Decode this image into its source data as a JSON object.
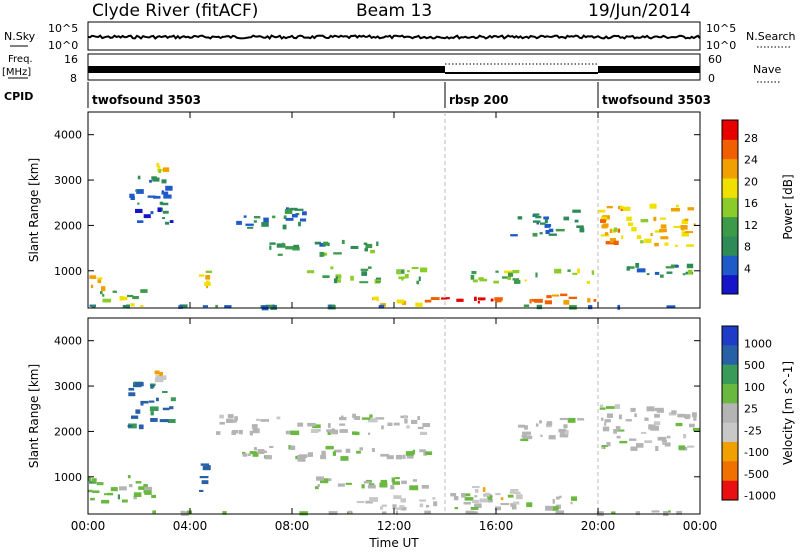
{
  "header": {
    "title": "Clyde River (fitACF)",
    "beam": "Beam 13",
    "date": "19/Jun/2014"
  },
  "strip_labels": {
    "nsky": "N.Sky",
    "nsky_ticks": [
      "10^5",
      "10^0"
    ],
    "nsearch": "N.Search",
    "freq": "Freq.",
    "freq_unit": "[MHz]",
    "freq_ticks": [
      "16",
      "8"
    ],
    "nave": "Nave",
    "nave_ticks": [
      "60",
      "0"
    ],
    "cpid": "CPID"
  },
  "cpid_segments": [
    {
      "label": "twofsound 3503",
      "start_hour": 0,
      "end_hour": 14.0
    },
    {
      "label": "rbsp 200",
      "start_hour": 14.0,
      "end_hour": 20.0
    },
    {
      "label": "twofsound 3503",
      "start_hour": 20.0,
      "end_hour": 24.0
    }
  ],
  "colors": {
    "power_scale": [
      "#1414c8",
      "#1e5ac8",
      "#2e8b57",
      "#3c9a4a",
      "#8ccc2a",
      "#f0e000",
      "#f0a000",
      "#f06000",
      "#e80000"
    ],
    "velocity_scale": [
      "#1e3cc8",
      "#2860a8",
      "#3a9a5a",
      "#6ab840",
      "#b4b4b4",
      "#c8c8c8",
      "#f0a000",
      "#f07000",
      "#e81010"
    ]
  },
  "chart_data": [
    {
      "type": "heatmap",
      "title": "",
      "xlabel": "",
      "ylabel": "Slant Range [km]",
      "xlim": [
        0,
        24
      ],
      "ylim": [
        180,
        4500
      ],
      "x_ticks": [
        "00:00",
        "04:00",
        "08:00",
        "12:00",
        "16:00",
        "20:00",
        "00:00"
      ],
      "y_ticks": [
        "1000",
        "2000",
        "3000",
        "4000"
      ],
      "colorbar": {
        "label": "Power [dB]",
        "ticks": [
          "4",
          "8",
          "12",
          "16",
          "20",
          "24",
          "28"
        ],
        "range": [
          0,
          30
        ]
      },
      "regions": [
        {
          "t0": 0.0,
          "t1": 0.8,
          "r0": 400,
          "r1": 900,
          "value": 22
        },
        {
          "t0": 0.3,
          "t1": 2.5,
          "r0": 200,
          "r1": 600,
          "value": 14
        },
        {
          "t0": 1.5,
          "t1": 3.5,
          "r0": 2000,
          "r1": 3100,
          "value": 6
        },
        {
          "t0": 2.6,
          "t1": 3.2,
          "r0": 3000,
          "r1": 3400,
          "value": 20
        },
        {
          "t0": 4.3,
          "t1": 4.9,
          "r0": 600,
          "r1": 1400,
          "value": 18
        },
        {
          "t0": 5.5,
          "t1": 9.0,
          "r0": 1900,
          "r1": 2400,
          "value": 8
        },
        {
          "t0": 7.0,
          "t1": 11.5,
          "r0": 1300,
          "r1": 1700,
          "value": 10
        },
        {
          "t0": 8.5,
          "t1": 13.5,
          "r0": 700,
          "r1": 1100,
          "value": 12
        },
        {
          "t0": 13.2,
          "t1": 15.8,
          "r0": 200,
          "r1": 450,
          "value": 28
        },
        {
          "t0": 11.0,
          "t1": 13.5,
          "r0": 200,
          "r1": 450,
          "value": 20
        },
        {
          "t0": 15.5,
          "t1": 20.0,
          "r0": 250,
          "r1": 500,
          "value": 24
        },
        {
          "t0": 15.0,
          "t1": 20.0,
          "r0": 700,
          "r1": 1050,
          "value": 14
        },
        {
          "t0": 16.5,
          "t1": 19.5,
          "r0": 1750,
          "r1": 2350,
          "value": 8
        },
        {
          "t0": 20.0,
          "t1": 24.0,
          "r0": 1500,
          "r1": 2500,
          "value": 20
        },
        {
          "t0": 21.0,
          "t1": 24.0,
          "r0": 800,
          "r1": 1200,
          "value": 10
        },
        {
          "t0": 0.0,
          "t1": 24.0,
          "r0": 180,
          "r1": 260,
          "value": 8
        }
      ]
    },
    {
      "type": "heatmap",
      "title": "",
      "xlabel": "Time UT",
      "ylabel": "Slant Range [km]",
      "xlim": [
        0,
        24
      ],
      "ylim": [
        180,
        4500
      ],
      "x_ticks": [
        "00:00",
        "04:00",
        "08:00",
        "12:00",
        "16:00",
        "20:00",
        "00:00"
      ],
      "y_ticks": [
        "1000",
        "2000",
        "3000",
        "4000"
      ],
      "colorbar": {
        "label": "Velocity [m s^-1]",
        "ticks": [
          "1000",
          "500",
          "100",
          "25",
          "-25",
          "-100",
          "-500",
          "-1000"
        ],
        "range": [
          -1000,
          1000
        ]
      },
      "regions": [
        {
          "t0": 0.0,
          "t1": 2.8,
          "r0": 400,
          "r1": 1100,
          "value": 200
        },
        {
          "t0": 1.5,
          "t1": 3.5,
          "r0": 2000,
          "r1": 3100,
          "value": 600
        },
        {
          "t0": 2.6,
          "t1": 3.2,
          "r0": 3000,
          "r1": 3400,
          "value": -300
        },
        {
          "t0": 4.3,
          "t1": 4.9,
          "r0": 600,
          "r1": 1400,
          "value": 700
        },
        {
          "t0": 5.0,
          "t1": 13.5,
          "r0": 1900,
          "r1": 2400,
          "value": 0
        },
        {
          "t0": 6.0,
          "t1": 13.5,
          "r0": 1300,
          "r1": 1700,
          "value": 80
        },
        {
          "t0": 8.5,
          "t1": 13.5,
          "r0": 700,
          "r1": 1050,
          "value": 150
        },
        {
          "t0": 10.5,
          "t1": 14.0,
          "r0": 250,
          "r1": 600,
          "value": -150
        },
        {
          "t0": 14.0,
          "t1": 19.5,
          "r0": 250,
          "r1": 650,
          "value": 60
        },
        {
          "t0": 15.0,
          "t1": 17.5,
          "r0": 350,
          "r1": 800,
          "value": -300
        },
        {
          "t0": 16.5,
          "t1": 19.5,
          "r0": 1750,
          "r1": 2350,
          "value": 0
        },
        {
          "t0": 20.0,
          "t1": 24.0,
          "r0": 1500,
          "r1": 2600,
          "value": 0
        },
        {
          "t0": 0.0,
          "t1": 24.0,
          "r0": 180,
          "r1": 260,
          "value": 60
        }
      ]
    }
  ]
}
